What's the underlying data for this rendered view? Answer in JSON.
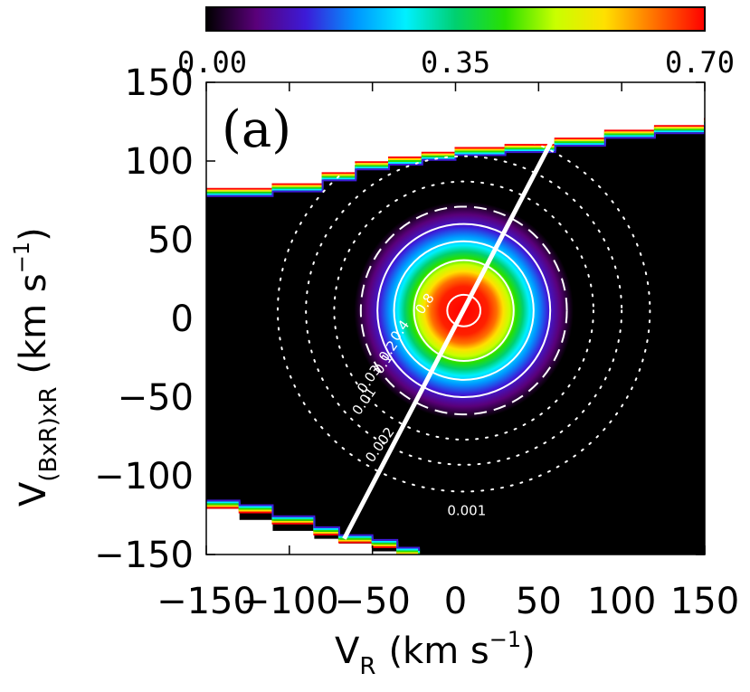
{
  "chart_data": {
    "type": "heatmap",
    "panel_label": "(a)",
    "xlabel_main": "V",
    "xlabel_sub": "R",
    "xlabel_units": "(km s",
    "xlabel_sup": "−1",
    "xlabel_close": ")",
    "ylabel_main": "V",
    "ylabel_sub": "(BxR)xR",
    "ylabel_units": "(km s",
    "ylabel_sup": "−1",
    "ylabel_close": ")",
    "xlim": [
      -150,
      150
    ],
    "ylim": [
      -150,
      150
    ],
    "x_ticks": [
      {
        "value": -150,
        "label": "−150"
      },
      {
        "value": -100,
        "label": "−100"
      },
      {
        "value": -50,
        "label": "−50"
      },
      {
        "value": 0,
        "label": "0"
      },
      {
        "value": 50,
        "label": "50"
      },
      {
        "value": 100,
        "label": "100"
      },
      {
        "value": 150,
        "label": "150"
      }
    ],
    "y_ticks": [
      {
        "value": 150,
        "label": "150"
      },
      {
        "value": 100,
        "label": "100"
      },
      {
        "value": 50,
        "label": "50"
      },
      {
        "value": 0,
        "label": "0"
      },
      {
        "value": -50,
        "label": "−50"
      },
      {
        "value": -100,
        "label": "−100"
      },
      {
        "value": -150,
        "label": "−150"
      }
    ],
    "colorbar": {
      "min": 0.0,
      "max": 0.7,
      "tick_labels": [
        {
          "value": 0.0,
          "label": "0.00"
        },
        {
          "value": 0.35,
          "label": "0.35"
        },
        {
          "value": 0.7,
          "label": "0.70"
        }
      ],
      "colors": [
        "#000000",
        "#5a007a",
        "#3c1bd8",
        "#0096ff",
        "#00f0ff",
        "#00d070",
        "#28e000",
        "#c8ff00",
        "#ffe000",
        "#ff7000",
        "#ff0000"
      ]
    },
    "peak": {
      "x": 5,
      "y": 5,
      "value": 0.7
    },
    "distribution_sigma": 40,
    "contours": [
      {
        "level": 0.8,
        "label": "0.8",
        "style": "solid",
        "rx": 10,
        "ry": 10
      },
      {
        "level": 0.4,
        "label": "0.4",
        "style": "solid",
        "rx": 30,
        "ry": 32
      },
      {
        "level": 0.2,
        "label": "0.2",
        "style": "solid",
        "rx": 42,
        "ry": 44
      },
      {
        "level": 0.1,
        "label": "0.1",
        "style": "solid",
        "rx": 52,
        "ry": 55
      },
      {
        "level": 0.03,
        "label": "0.03",
        "style": "dashed",
        "rx": 62,
        "ry": 66
      },
      {
        "level": 0.01,
        "label": "0.01",
        "style": "dotted",
        "rx": 78,
        "ry": 82
      },
      {
        "level": 0.002,
        "label": "0.002",
        "style": "dotted",
        "rx": 95,
        "ry": 98
      },
      {
        "level": 0.001,
        "label": "0.001",
        "style": "dotted",
        "rx": 112,
        "ry": 115
      }
    ],
    "contour_label_positions": [
      {
        "label": "0.8",
        "x": -20,
        "y": 2
      },
      {
        "label": "0.4",
        "x": -35,
        "y": -15
      },
      {
        "label": "0.2",
        "x": -42,
        "y": -28
      },
      {
        "label": "0.1",
        "x": -45,
        "y": -36
      },
      {
        "label": "0.03",
        "x": -55,
        "y": -48
      },
      {
        "label": "0.01",
        "x": -58,
        "y": -62
      },
      {
        "label": "0.002",
        "x": -50,
        "y": -92
      },
      {
        "label": "0.001",
        "x": -5,
        "y": -125
      }
    ],
    "line": {
      "x1": -67,
      "y1": -140,
      "x2": 58,
      "y2": 113
    },
    "upper_boundary": [
      {
        "x": -150,
        "y": 80
      },
      {
        "x": -110,
        "y": 83
      },
      {
        "x": -80,
        "y": 90
      },
      {
        "x": -60,
        "y": 97
      },
      {
        "x": -40,
        "y": 100
      },
      {
        "x": -20,
        "y": 103
      },
      {
        "x": 0,
        "y": 106
      },
      {
        "x": 30,
        "y": 108
      },
      {
        "x": 60,
        "y": 112
      },
      {
        "x": 90,
        "y": 117
      },
      {
        "x": 120,
        "y": 120
      },
      {
        "x": 150,
        "y": 125
      }
    ],
    "lower_boundary": [
      {
        "x": -150,
        "y": -118
      },
      {
        "x": -130,
        "y": -121
      },
      {
        "x": -110,
        "y": -128
      },
      {
        "x": -85,
        "y": -135
      },
      {
        "x": -70,
        "y": -140
      },
      {
        "x": -50,
        "y": -143
      },
      {
        "x": -35,
        "y": -148
      },
      {
        "x": -22,
        "y": -150
      }
    ]
  }
}
